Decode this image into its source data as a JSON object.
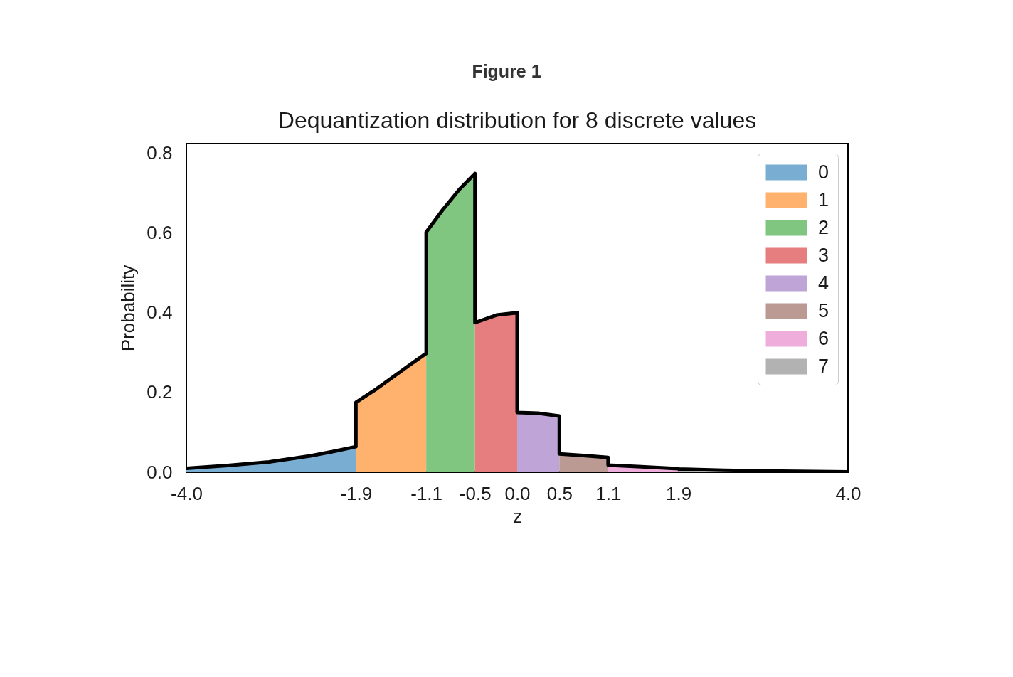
{
  "chart_data": {
    "type": "area",
    "title": "Dequantization distribution for 8 discrete values",
    "xlabel": "z",
    "ylabel": "Probability",
    "annotations": [
      "Figure 1"
    ],
    "xlim": [
      -4,
      4
    ],
    "ylim": [
      0,
      0.824
    ],
    "xticks": [
      {
        "value": -4,
        "label": "-4.0"
      },
      {
        "value": -1.95,
        "label": "-1.9"
      },
      {
        "value": -1.1,
        "label": "-1.1"
      },
      {
        "value": -0.51,
        "label": "-0.5"
      },
      {
        "value": 0,
        "label": "0.0"
      },
      {
        "value": 0.51,
        "label": "0.5"
      },
      {
        "value": 1.1,
        "label": "1.1"
      },
      {
        "value": 1.95,
        "label": "1.9"
      },
      {
        "value": 4,
        "label": "4.0"
      }
    ],
    "yticks": [
      {
        "value": 0,
        "label": "0.0"
      },
      0.2,
      0.4,
      0.6,
      0.8
    ],
    "grid": false,
    "legend": "top right",
    "series": [
      {
        "name": "0",
        "color": "#79add2",
        "x": [
          -4,
          -3.5,
          -3,
          -2.5,
          -2.2,
          -1.95
        ],
        "values": [
          0.01,
          0.017,
          0.026,
          0.041,
          0.053,
          0.064
        ]
      },
      {
        "name": "1",
        "color": "#ffb26e",
        "x": [
          -1.95,
          -1.7,
          -1.5,
          -1.3,
          -1.1
        ],
        "values": [
          0.175,
          0.209,
          0.239,
          0.269,
          0.298
        ]
      },
      {
        "name": "2",
        "color": "#80c680",
        "x": [
          -1.1,
          -0.9,
          -0.7,
          -0.51
        ],
        "values": [
          0.602,
          0.658,
          0.709,
          0.749
        ]
      },
      {
        "name": "3",
        "color": "#e67d7e",
        "x": [
          -0.51,
          -0.25,
          0
        ],
        "values": [
          0.375,
          0.394,
          0.4
        ]
      },
      {
        "name": "4",
        "color": "#bfa4d7",
        "x": [
          0,
          0.25,
          0.51
        ],
        "values": [
          0.15,
          0.148,
          0.141
        ]
      },
      {
        "name": "5",
        "color": "#ba9a93",
        "x": [
          0.51,
          0.8,
          1.1
        ],
        "values": [
          0.046,
          0.042,
          0.037
        ]
      },
      {
        "name": "6",
        "color": "#eeadda",
        "x": [
          1.1,
          1.5,
          1.95
        ],
        "values": [
          0.018,
          0.014,
          0.009
        ]
      },
      {
        "name": "7",
        "color": "#b2b2b2",
        "x": [
          1.95,
          2.5,
          3,
          4
        ],
        "values": [
          0.008,
          0.005,
          0.003,
          0.001
        ]
      },
      {
        "type": "line",
        "color": "#000000",
        "line_style": "solid",
        "x": [
          -4,
          -3.5,
          -3,
          -2.5,
          -2.2,
          -1.95,
          -1.95,
          -1.7,
          -1.5,
          -1.3,
          -1.1,
          -1.1,
          -0.9,
          -0.7,
          -0.51,
          -0.51,
          -0.25,
          0,
          0,
          0.25,
          0.51,
          0.51,
          0.8,
          1.1,
          1.1,
          1.5,
          1.95,
          1.95,
          2.5,
          3,
          4
        ],
        "values": [
          0.01,
          0.017,
          0.026,
          0.041,
          0.053,
          0.064,
          0.175,
          0.209,
          0.239,
          0.269,
          0.298,
          0.602,
          0.658,
          0.709,
          0.749,
          0.375,
          0.394,
          0.4,
          0.15,
          0.148,
          0.141,
          0.046,
          0.042,
          0.037,
          0.018,
          0.014,
          0.009,
          0.008,
          0.005,
          0.003,
          0.001
        ]
      }
    ]
  }
}
